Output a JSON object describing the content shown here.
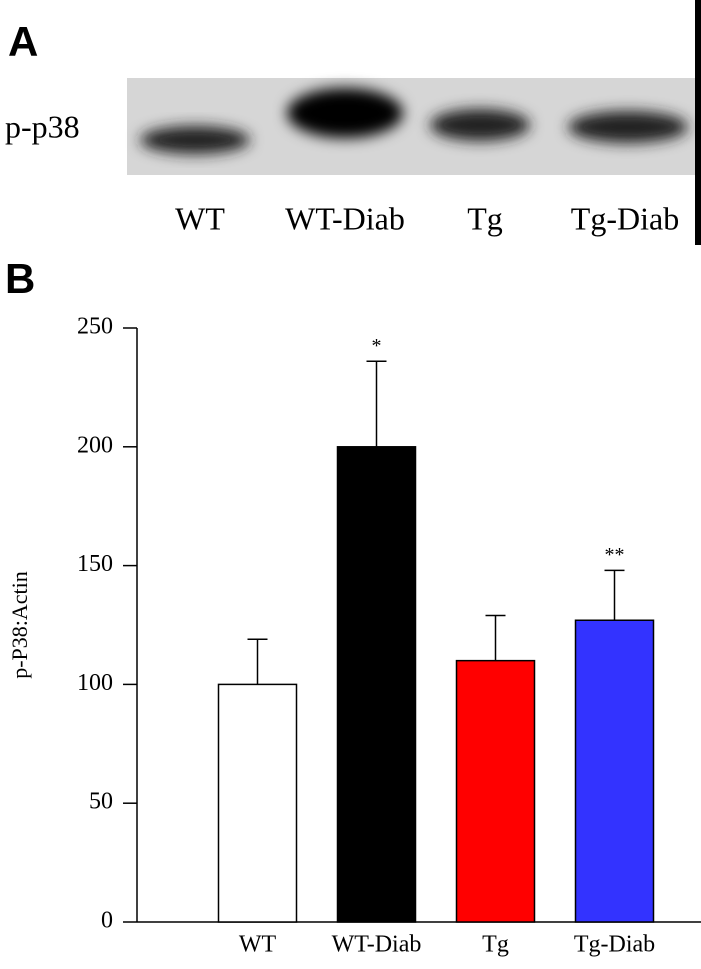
{
  "panel_a": {
    "label": "A",
    "row_label": "p-p38",
    "lanes": [
      "WT",
      "WT-Diab",
      "Tg",
      "Tg-Diab"
    ]
  },
  "chart_data": {
    "type": "bar",
    "panel_label": "B",
    "y_label": "p-P38:Actin",
    "categories": [
      "WT",
      "WT-Diab",
      "Tg",
      "Tg-Diab"
    ],
    "values": [
      100,
      200,
      110,
      127
    ],
    "errors": [
      19,
      36,
      19,
      21
    ],
    "colors": [
      "#ffffff",
      "#000000",
      "#ff0000",
      "#3333ff"
    ],
    "annotations": [
      {
        "index": 1,
        "text": "*"
      },
      {
        "index": 3,
        "text": "**"
      }
    ],
    "ylim": [
      0,
      250
    ],
    "yticks": [
      0,
      50,
      100,
      150,
      200,
      250
    ]
  }
}
